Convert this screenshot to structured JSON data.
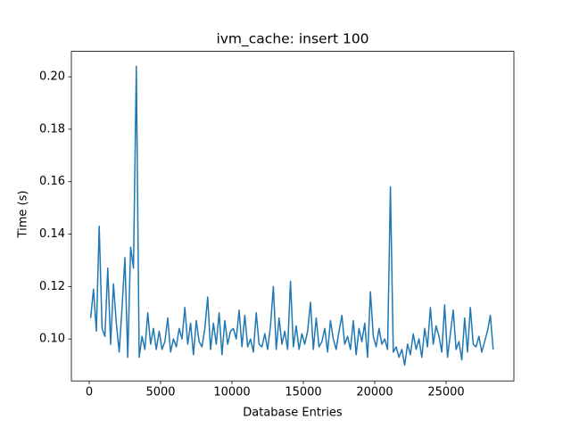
{
  "chart_data": {
    "type": "line",
    "title": "ivm_cache: insert 100",
    "xlabel": "Database Entries",
    "ylabel": "Time (s)",
    "x": [
      100,
      300,
      500,
      700,
      900,
      1100,
      1300,
      1500,
      1700,
      1900,
      2100,
      2300,
      2500,
      2700,
      2900,
      3100,
      3300,
      3500,
      3700,
      3900,
      4100,
      4300,
      4500,
      4700,
      4900,
      5100,
      5300,
      5500,
      5700,
      5900,
      6100,
      6300,
      6500,
      6700,
      6900,
      7100,
      7300,
      7500,
      7700,
      7900,
      8100,
      8300,
      8500,
      8700,
      8900,
      9100,
      9300,
      9500,
      9700,
      9900,
      10100,
      10300,
      10500,
      10700,
      10900,
      11100,
      11300,
      11500,
      11700,
      11900,
      12100,
      12300,
      12500,
      12700,
      12900,
      13100,
      13300,
      13500,
      13700,
      13900,
      14100,
      14300,
      14500,
      14700,
      14900,
      15100,
      15300,
      15500,
      15700,
      15900,
      16100,
      16300,
      16500,
      16700,
      16900,
      17100,
      17300,
      17500,
      17700,
      17900,
      18100,
      18300,
      18500,
      18700,
      18900,
      19100,
      19300,
      19500,
      19700,
      19900,
      20100,
      20300,
      20500,
      20700,
      20900,
      21100,
      21300,
      21500,
      21700,
      21900,
      22100,
      22300,
      22500,
      22700,
      22900,
      23100,
      23300,
      23500,
      23700,
      23900,
      24100,
      24300,
      24500,
      24700,
      24900,
      25100,
      25300,
      25500,
      25700,
      25900,
      26100,
      26300,
      26500,
      26700,
      26900,
      27100,
      27300,
      27500,
      27700,
      27900,
      28100,
      28300
    ],
    "series": [
      {
        "color": "#1f77b4",
        "values": [
          0.108,
          0.119,
          0.103,
          0.143,
          0.104,
          0.101,
          0.127,
          0.098,
          0.121,
          0.106,
          0.095,
          0.112,
          0.131,
          0.093,
          0.135,
          0.127,
          0.204,
          0.093,
          0.101,
          0.096,
          0.11,
          0.098,
          0.104,
          0.096,
          0.103,
          0.096,
          0.099,
          0.108,
          0.095,
          0.1,
          0.097,
          0.104,
          0.1,
          0.112,
          0.098,
          0.106,
          0.094,
          0.107,
          0.099,
          0.097,
          0.104,
          0.116,
          0.096,
          0.106,
          0.098,
          0.11,
          0.094,
          0.107,
          0.098,
          0.103,
          0.104,
          0.1,
          0.111,
          0.097,
          0.109,
          0.097,
          0.1,
          0.095,
          0.11,
          0.098,
          0.097,
          0.102,
          0.096,
          0.105,
          0.12,
          0.096,
          0.108,
          0.098,
          0.103,
          0.096,
          0.122,
          0.097,
          0.105,
          0.096,
          0.102,
          0.098,
          0.103,
          0.114,
          0.096,
          0.108,
          0.097,
          0.099,
          0.104,
          0.095,
          0.107,
          0.1,
          0.096,
          0.103,
          0.109,
          0.098,
          0.101,
          0.096,
          0.107,
          0.094,
          0.104,
          0.099,
          0.106,
          0.093,
          0.118,
          0.101,
          0.097,
          0.104,
          0.098,
          0.1,
          0.096,
          0.158,
          0.095,
          0.097,
          0.093,
          0.096,
          0.09,
          0.098,
          0.094,
          0.102,
          0.096,
          0.1,
          0.093,
          0.104,
          0.097,
          0.112,
          0.098,
          0.105,
          0.101,
          0.095,
          0.113,
          0.093,
          0.102,
          0.111,
          0.096,
          0.099,
          0.092,
          0.108,
          0.095,
          0.112,
          0.098,
          0.097,
          0.101,
          0.095,
          0.099,
          0.103,
          0.109,
          0.096
        ]
      }
    ],
    "xlim": [
      -1250,
      29750
    ],
    "xticks": [
      0,
      5000,
      10000,
      15000,
      20000,
      25000
    ],
    "ylim": [
      0.084,
      0.2097
    ],
    "yticks": [
      {
        "value": 0.1,
        "label": "0.10"
      },
      {
        "value": 0.12,
        "label": "0.12"
      },
      {
        "value": 0.14,
        "label": "0.14"
      },
      {
        "value": 0.16,
        "label": "0.16"
      },
      {
        "value": 0.18,
        "label": "0.18"
      },
      {
        "value": 0.2,
        "label": "0.20"
      }
    ]
  }
}
